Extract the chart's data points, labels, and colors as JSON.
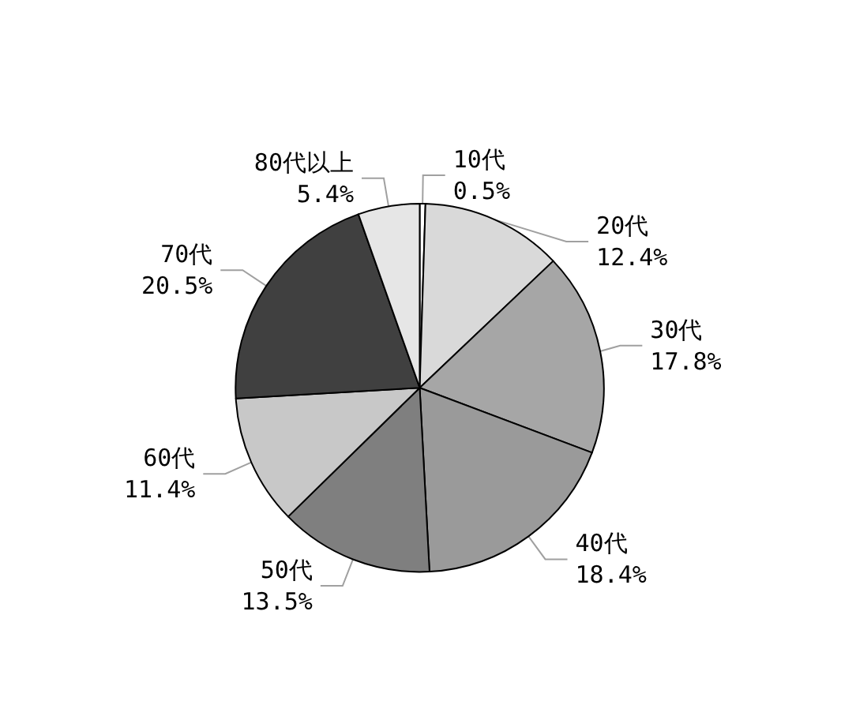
{
  "chart_data": {
    "type": "pie",
    "categories": [
      "10代",
      "20代",
      "30代",
      "40代",
      "50代",
      "60代",
      "70代",
      "80代以上"
    ],
    "values": [
      0.5,
      12.4,
      17.8,
      18.4,
      13.5,
      11.4,
      20.5,
      5.4
    ],
    "colors": [
      "#ffffff",
      "#d9d9d9",
      "#a6a6a6",
      "#9a9a9a",
      "#7f7f7f",
      "#c8c8c8",
      "#404040",
      "#e6e6e6"
    ],
    "value_labels": [
      "0.5%",
      "12.4%",
      "17.8%",
      "18.4%",
      "13.5%",
      "11.4%",
      "20.5%",
      "5.4%"
    ],
    "legend": false
  }
}
